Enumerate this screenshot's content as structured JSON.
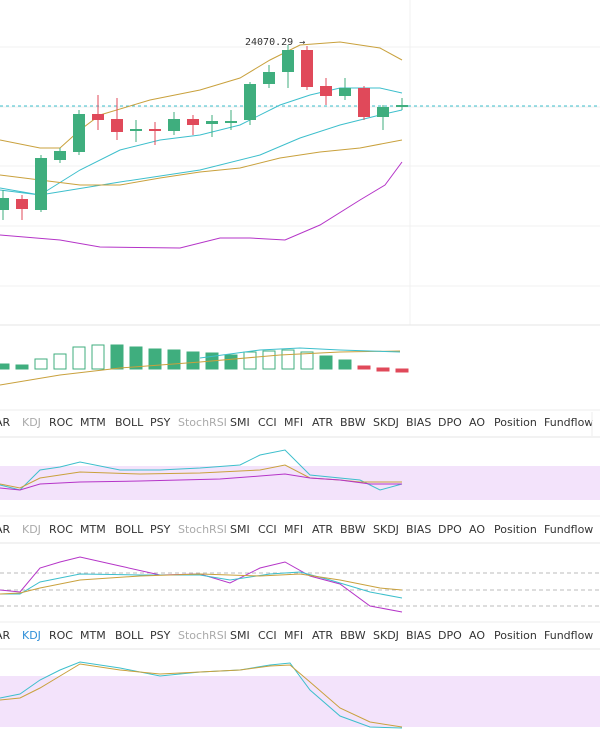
{
  "price_label": "24070.29 →",
  "indicator_rows": [
    [
      "AR",
      "KDJ",
      "ROC",
      "MTM",
      "BOLL",
      "PSY",
      "StochRSI",
      "SMI",
      "CCI",
      "MFI",
      "ATR",
      "BBW",
      "SKDJ",
      "BIAS",
      "DPO",
      "AO",
      "Position",
      "Fundflow"
    ],
    [
      "AR",
      "KDJ",
      "ROC",
      "MTM",
      "BOLL",
      "PSY",
      "StochRSI",
      "SMI",
      "CCI",
      "MFI",
      "ATR",
      "BBW",
      "SKDJ",
      "BIAS",
      "DPO",
      "AO",
      "Position",
      "Fundflow"
    ],
    [
      "AR",
      "KDJ",
      "ROC",
      "MTM",
      "BOLL",
      "PSY",
      "StochRSI",
      "SMI",
      "CCI",
      "MFI",
      "ATR",
      "BBW",
      "SKDJ",
      "BIAS",
      "DPO",
      "AO",
      "Position",
      "Fundflow"
    ]
  ]
}
